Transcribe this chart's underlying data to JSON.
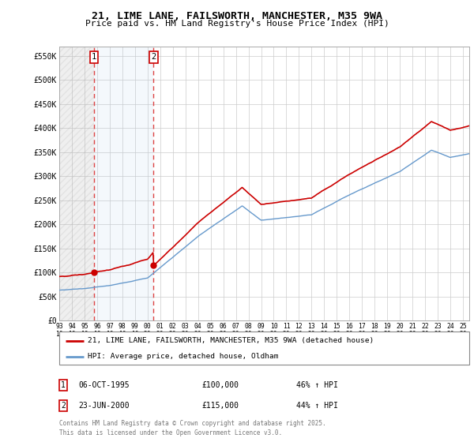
{
  "title_line1": "21, LIME LANE, FAILSWORTH, MANCHESTER, M35 9WA",
  "title_line2": "Price paid vs. HM Land Registry's House Price Index (HPI)",
  "ylabel_ticks": [
    "£0",
    "£50K",
    "£100K",
    "£150K",
    "£200K",
    "£250K",
    "£300K",
    "£350K",
    "£400K",
    "£450K",
    "£500K",
    "£550K"
  ],
  "ylim": [
    0,
    570000
  ],
  "xlim_start": 1993.0,
  "xlim_end": 2025.5,
  "sale1_date": 1995.76,
  "sale1_price": 100000,
  "sale2_date": 2000.48,
  "sale2_price": 115000,
  "legend_line1": "21, LIME LANE, FAILSWORTH, MANCHESTER, M35 9WA (detached house)",
  "legend_line2": "HPI: Average price, detached house, Oldham",
  "table_row1": [
    "1",
    "06-OCT-1995",
    "£100,000",
    "46% ↑ HPI"
  ],
  "table_row2": [
    "2",
    "23-JUN-2000",
    "£115,000",
    "44% ↑ HPI"
  ],
  "footer": "Contains HM Land Registry data © Crown copyright and database right 2025.\nThis data is licensed under the Open Government Licence v3.0.",
  "red_line_color": "#cc0000",
  "blue_line_color": "#6699cc",
  "sale_marker_color": "#cc0000",
  "vline_color": "#dd4444",
  "grid_color": "#cccccc",
  "sale_box_color": "#cc0000",
  "hatch_alpha": 0.18,
  "blue_span_alpha": 0.12
}
